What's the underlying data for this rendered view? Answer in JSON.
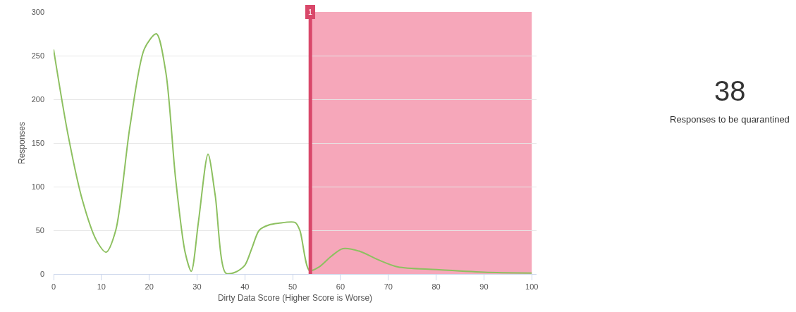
{
  "chart_data": {
    "type": "line",
    "xlabel": "Dirty Data Score (Higher Score is Worse)",
    "ylabel": "Responses",
    "x": [
      0,
      3,
      6,
      9,
      11,
      13,
      16,
      19,
      21.5,
      23.5,
      25.5,
      27.5,
      28.8,
      30.3,
      32.3,
      33.8,
      36,
      38,
      40,
      41.5,
      43,
      45,
      47,
      50.5,
      51.5,
      53.5,
      55.5,
      58,
      60.5,
      64,
      68,
      72,
      80,
      90,
      100
    ],
    "series": [
      {
        "color": "#8dc060",
        "values": [
          257,
          160,
          85,
          38,
          25,
          50,
          170,
          258,
          275,
          230,
          110,
          25,
          3,
          60,
          137,
          90,
          1,
          2,
          10,
          30,
          50,
          56,
          58,
          59,
          50,
          4,
          8,
          20,
          29,
          26,
          16,
          8,
          5,
          2,
          1
        ]
      }
    ],
    "xlim": [
      0,
      101
    ],
    "ylim": [
      0,
      300
    ],
    "xticks": [
      0,
      10,
      20,
      30,
      40,
      50,
      60,
      70,
      80,
      90,
      100
    ],
    "yticks": [
      0,
      50,
      100,
      150,
      200,
      250,
      300
    ],
    "grid": "y",
    "marker": "none",
    "line_style": "solid",
    "legend": false,
    "ref_lines": [
      {
        "axis": "x",
        "value": 53.7,
        "color": "#d9486a"
      }
    ],
    "bands": [
      {
        "axis": "x",
        "from": 53.7,
        "to": 100,
        "color": "#f6a7ba"
      }
    ],
    "annotations": [
      {
        "text": "1",
        "x": 53.7,
        "y": 300
      },
      "38",
      "Responses to be quarantined"
    ]
  }
}
